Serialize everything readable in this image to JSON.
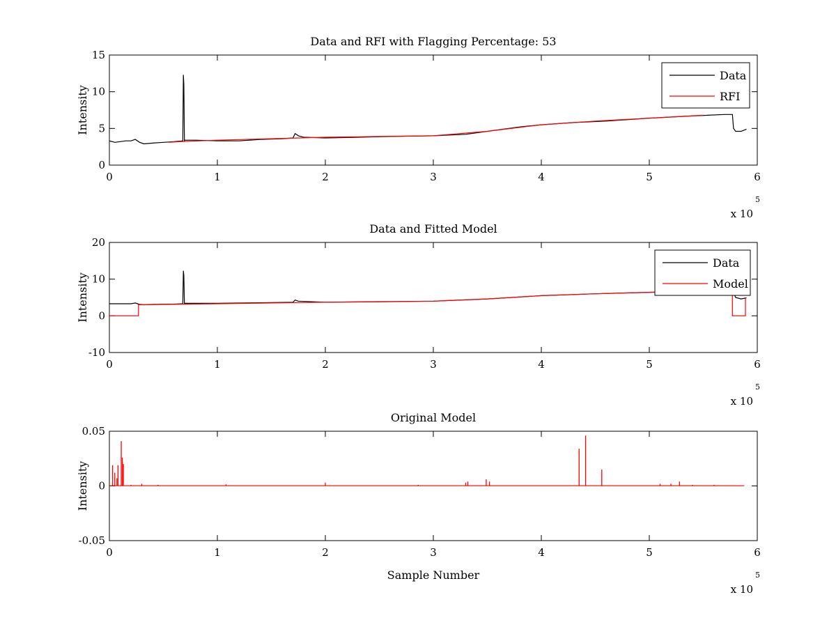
{
  "chart_data": [
    {
      "id": "p1",
      "type": "line",
      "title": "Data and RFI with Flagging Percentage: 53",
      "xlabel": "",
      "ylabel": "Intensity",
      "xlim": [
        0,
        600000
      ],
      "ylim": [
        0,
        15
      ],
      "xticks": [
        "0",
        "1",
        "2",
        "3",
        "4",
        "5",
        "6"
      ],
      "yticks": [
        "0",
        "5",
        "10",
        "15"
      ],
      "x_multiplier": "x 10",
      "x_multiplier_exp": "5",
      "legend": {
        "position": "top-right",
        "entries": [
          {
            "name": "Data",
            "color": "#000000"
          },
          {
            "name": "RFI",
            "color": "#ff0000"
          }
        ]
      },
      "series": [
        {
          "name": "Data",
          "color": "#000000",
          "x": [
            0,
            5000,
            10000,
            15000,
            20000,
            24000,
            28000,
            32000,
            40000,
            50000,
            60000,
            68000,
            68500,
            69000,
            69500,
            70000,
            80000,
            100000,
            120000,
            140000,
            160000,
            170000,
            172000,
            175000,
            180000,
            200000,
            230000,
            260000,
            300000,
            330000,
            350000,
            380000,
            400000,
            430000,
            460000,
            500000,
            540000,
            570000,
            577000,
            578000,
            580000,
            585000,
            590000
          ],
          "y": [
            3.3,
            3.1,
            3.2,
            3.3,
            3.3,
            3.5,
            3.1,
            2.9,
            3.0,
            3.1,
            3.2,
            3.3,
            12.3,
            11,
            3.3,
            3.4,
            3.4,
            3.3,
            3.3,
            3.5,
            3.6,
            3.7,
            4.3,
            4.0,
            3.8,
            3.7,
            3.8,
            3.9,
            4.0,
            4.2,
            4.6,
            5.2,
            5.5,
            5.8,
            6.0,
            6.4,
            6.7,
            6.9,
            6.9,
            5.0,
            4.6,
            4.6,
            4.9
          ]
        },
        {
          "name": "RFI",
          "color": "#ff0000",
          "x": [
            55000,
            65000,
            100000,
            150000,
            200000,
            250000,
            300000,
            350000,
            400000,
            450000,
            500000,
            550000
          ],
          "y": [
            3.1,
            3.2,
            3.4,
            3.6,
            3.8,
            3.9,
            4.0,
            4.6,
            5.5,
            6.0,
            6.4,
            6.8
          ]
        }
      ]
    },
    {
      "id": "p2",
      "type": "line",
      "title": "Data and Fitted Model",
      "xlabel": "",
      "ylabel": "Intensity",
      "xlim": [
        0,
        600000
      ],
      "ylim": [
        -10,
        20
      ],
      "xticks": [
        "0",
        "1",
        "2",
        "3",
        "4",
        "5",
        "6"
      ],
      "yticks": [
        "-10",
        "0",
        "10",
        "20"
      ],
      "x_multiplier": "x 10",
      "x_multiplier_exp": "5",
      "legend": {
        "position": "top-right",
        "entries": [
          {
            "name": "Data",
            "color": "#000000"
          },
          {
            "name": "Model",
            "color": "#ff0000"
          }
        ]
      },
      "series": [
        {
          "name": "Data",
          "color": "#000000",
          "x": [
            0,
            10000,
            20000,
            24000,
            28000,
            32000,
            40000,
            60000,
            68000,
            68500,
            69000,
            69500,
            70000,
            100000,
            150000,
            170000,
            172000,
            175000,
            200000,
            300000,
            350000,
            400000,
            450000,
            500000,
            540000,
            570000,
            577000,
            580000,
            585000,
            590000
          ],
          "y": [
            3.3,
            3.3,
            3.3,
            3.5,
            3.1,
            3.0,
            3.1,
            3.2,
            3.3,
            12.3,
            11,
            3.3,
            3.4,
            3.4,
            3.6,
            3.7,
            4.3,
            4.0,
            3.7,
            4.0,
            4.6,
            5.5,
            6.0,
            6.4,
            6.7,
            6.9,
            6.9,
            5.0,
            4.6,
            4.9
          ]
        },
        {
          "name": "Model",
          "color": "#ff0000",
          "x": [
            0,
            27000,
            27000,
            30000,
            50000,
            100000,
            150000,
            200000,
            250000,
            300000,
            350000,
            400000,
            450000,
            500000,
            550000,
            577000,
            577000,
            589000,
            589000
          ],
          "y": [
            0,
            0,
            3.0,
            3.0,
            3.1,
            3.3,
            3.5,
            3.7,
            3.8,
            4.0,
            4.6,
            5.5,
            6.0,
            6.4,
            6.8,
            6.9,
            0,
            0,
            5.0
          ]
        }
      ]
    },
    {
      "id": "p3",
      "type": "line",
      "title": "Original Model",
      "xlabel": "Sample Number",
      "ylabel": "Intensity",
      "xlim": [
        0,
        600000
      ],
      "ylim": [
        -0.05,
        0.05
      ],
      "xticks": [
        "0",
        "1",
        "2",
        "3",
        "4",
        "5",
        "6"
      ],
      "yticks": [
        "-0.05",
        "0",
        "0.05"
      ],
      "x_multiplier": "x 10",
      "x_multiplier_exp": "5",
      "series": [
        {
          "name": "",
          "color": "#ff0000",
          "baseline": 0.0002,
          "spikes_x": [
            3000,
            5000,
            7000,
            8000,
            11000,
            12000,
            13000,
            20000,
            30000,
            45000,
            108000,
            200000,
            286000,
            330000,
            332000,
            349000,
            352000,
            435000,
            441000,
            456000,
            510000,
            520000,
            528000,
            540000,
            560000
          ],
          "spikes_y": [
            0.019,
            0.012,
            0.007,
            0.019,
            0.041,
            0.026,
            0.02,
            0.001,
            0.002,
            0.001,
            0.0015,
            0.003,
            0.001,
            0.003,
            0.004,
            0.006,
            0.004,
            0.034,
            0.046,
            0.015,
            0.002,
            0.002,
            0.004,
            0.001,
            0.001
          ]
        }
      ]
    }
  ]
}
